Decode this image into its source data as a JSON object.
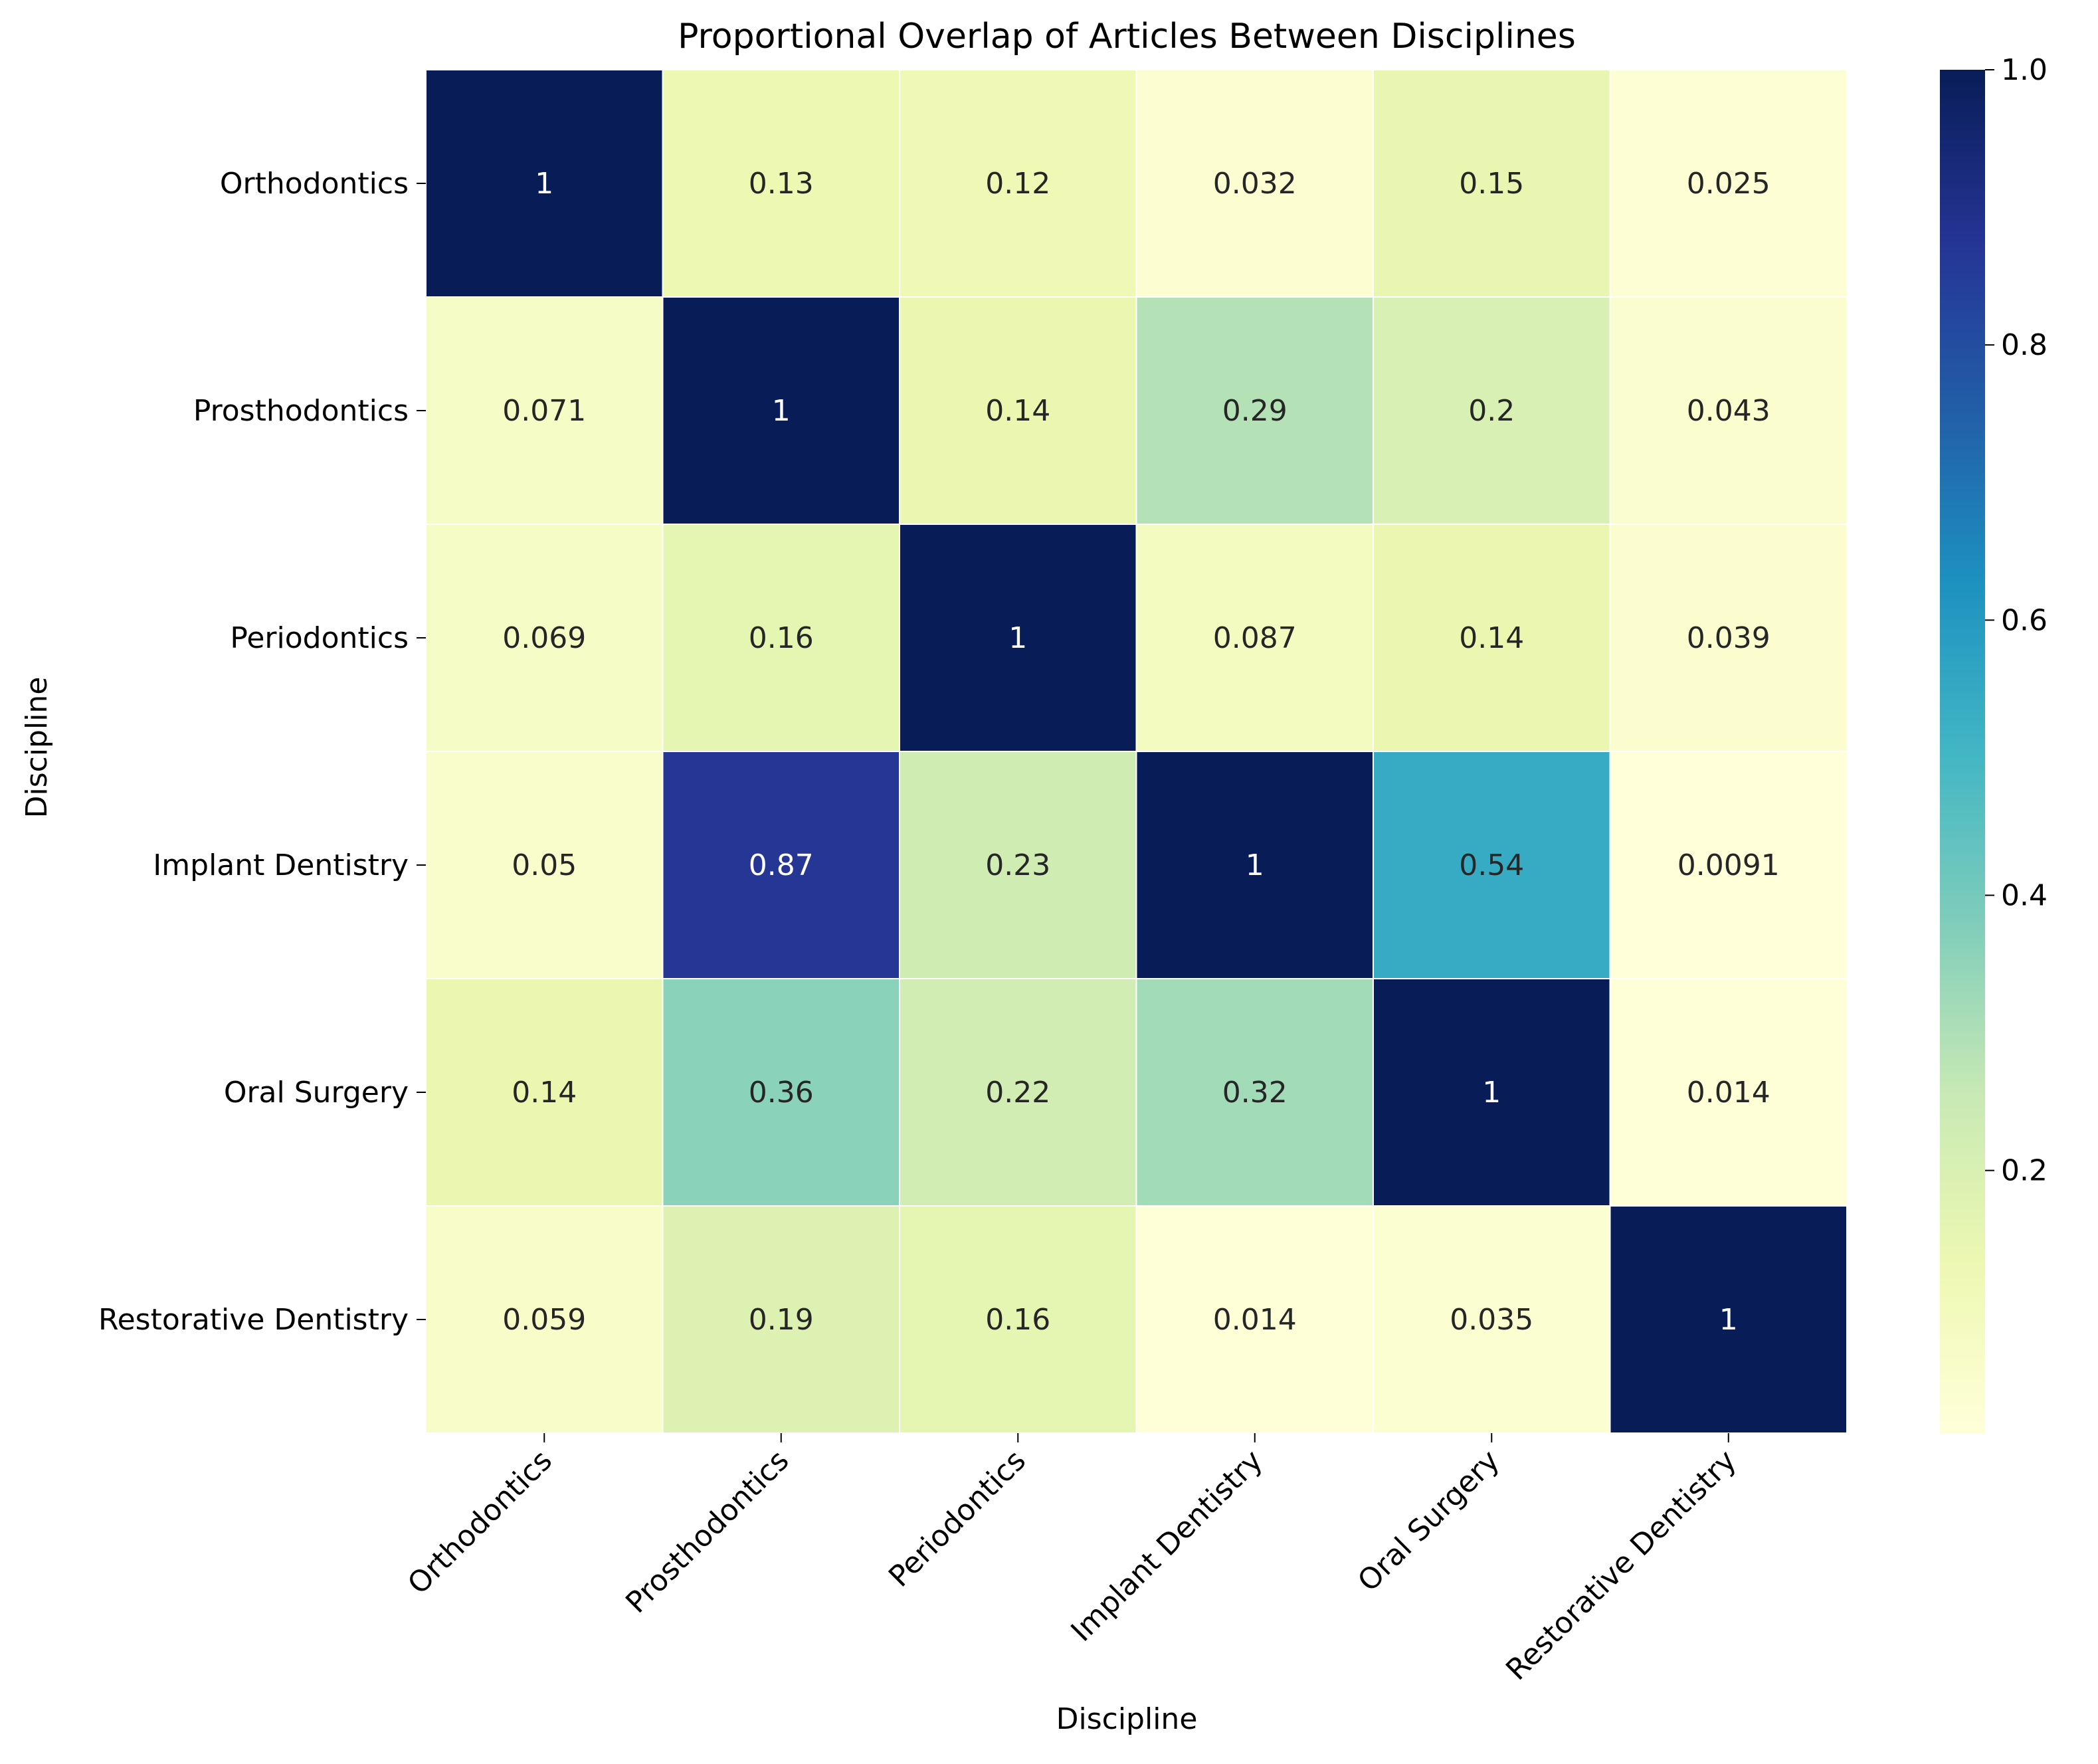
{
  "chart_data": {
    "type": "heatmap",
    "title": "Proportional Overlap of Articles Between Disciplines",
    "xlabel": "Discipline",
    "ylabel": "Discipline",
    "x_categories": [
      "Orthodontics",
      "Prosthodontics",
      "Periodontics",
      "Implant Dentistry",
      "Oral Surgery",
      "Restorative Dentistry"
    ],
    "y_categories": [
      "Orthodontics",
      "Prosthodontics",
      "Periodontics",
      "Implant Dentistry",
      "Oral Surgery",
      "Restorative Dentistry"
    ],
    "values": [
      [
        1,
        0.13,
        0.12,
        0.032,
        0.15,
        0.025
      ],
      [
        0.071,
        1,
        0.14,
        0.29,
        0.2,
        0.043
      ],
      [
        0.069,
        0.16,
        1,
        0.087,
        0.14,
        0.039
      ],
      [
        0.05,
        0.87,
        0.23,
        1,
        0.54,
        0.0091
      ],
      [
        0.14,
        0.36,
        0.22,
        0.32,
        1,
        0.014
      ],
      [
        0.059,
        0.19,
        0.16,
        0.014,
        0.035,
        1
      ]
    ],
    "labels": [
      [
        "1",
        "0.13",
        "0.12",
        "0.032",
        "0.15",
        "0.025"
      ],
      [
        "0.071",
        "1",
        "0.14",
        "0.29",
        "0.2",
        "0.043"
      ],
      [
        "0.069",
        "0.16",
        "1",
        "0.087",
        "0.14",
        "0.039"
      ],
      [
        "0.05",
        "0.87",
        "0.23",
        "1",
        "0.54",
        "0.0091"
      ],
      [
        "0.14",
        "0.36",
        "0.22",
        "0.32",
        "1",
        "0.014"
      ],
      [
        "0.059",
        "0.19",
        "0.16",
        "0.014",
        "0.035",
        "1"
      ]
    ],
    "colormap": "YlGnBu",
    "colorbar": {
      "vmin": 0.0091,
      "vmax": 1.0,
      "ticks": [
        0.2,
        0.4,
        0.6,
        0.8,
        1.0
      ],
      "tick_labels": [
        "0.2",
        "0.4",
        "0.6",
        "0.8",
        "1.0"
      ]
    }
  },
  "colors": {
    "cmap_stops": [
      "#ffffd9",
      "#edf8b1",
      "#c7e9b4",
      "#7fcdbb",
      "#41b6c4",
      "#1d91c0",
      "#225ea8",
      "#253494",
      "#081d58"
    ],
    "grid_line": "#ffffff",
    "text_dark": "#262626",
    "text_light": "#ffffff",
    "axis": "#000000"
  }
}
